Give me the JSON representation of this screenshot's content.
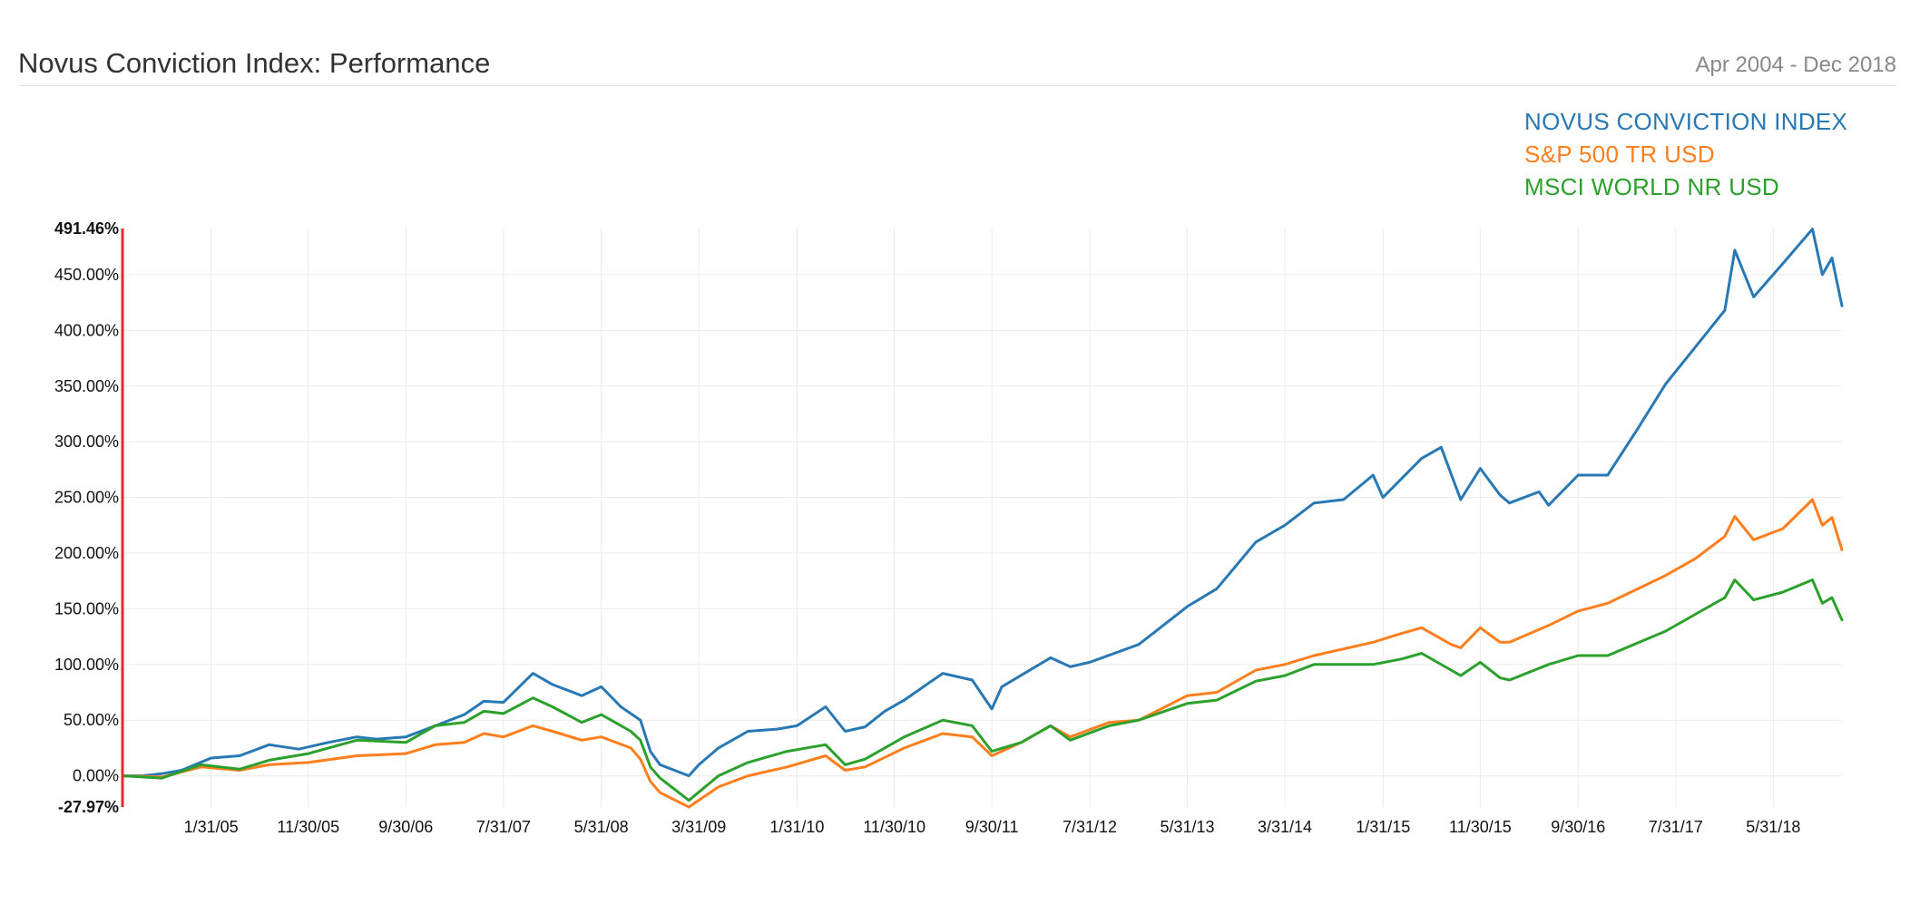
{
  "header": {
    "title": "Novus Conviction Index: Performance",
    "date_range": "Apr 2004 - Dec 2018"
  },
  "legend": [
    {
      "label": "NOVUS CONVICTION INDEX",
      "color": "#2878b4"
    },
    {
      "label": "S&P 500 TR USD",
      "color": "#ff7f1e"
    },
    {
      "label": "MSCI WORLD NR USD",
      "color": "#2ca02c"
    }
  ],
  "chart_data": {
    "type": "line",
    "title": "Novus Conviction Index: Performance",
    "xlabel": "",
    "ylabel": "",
    "ylim": [
      -27.97,
      491.46
    ],
    "y_ticks": [
      "491.46%",
      "450.00%",
      "400.00%",
      "350.00%",
      "300.00%",
      "250.00%",
      "200.00%",
      "150.00%",
      "100.00%",
      "50.00%",
      "0.00%",
      "-27.97%"
    ],
    "y_tick_values": [
      491.46,
      450,
      400,
      350,
      300,
      250,
      200,
      150,
      100,
      50,
      0,
      -27.97
    ],
    "x_ticks": [
      "1/31/05",
      "11/30/05",
      "9/30/06",
      "7/31/07",
      "5/31/08",
      "3/31/09",
      "1/31/10",
      "11/30/10",
      "9/30/11",
      "7/31/12",
      "5/31/13",
      "3/31/14",
      "1/31/15",
      "11/30/15",
      "9/30/16",
      "7/31/17",
      "5/31/18"
    ],
    "x_start": "2004-04-30",
    "x_end": "2018-12-31",
    "grid": true,
    "legend_position": "top-right",
    "series": [
      {
        "name": "NOVUS CONVICTION INDEX",
        "color": "#2878b4",
        "points": [
          [
            "2004-04-30",
            0
          ],
          [
            "2004-06-30",
            0
          ],
          [
            "2004-08-31",
            2
          ],
          [
            "2004-10-31",
            5
          ],
          [
            "2005-01-31",
            16
          ],
          [
            "2005-04-30",
            18
          ],
          [
            "2005-07-31",
            28
          ],
          [
            "2005-10-31",
            24
          ],
          [
            "2006-01-31",
            30
          ],
          [
            "2006-04-30",
            35
          ],
          [
            "2006-06-30",
            33
          ],
          [
            "2006-09-30",
            35
          ],
          [
            "2006-12-31",
            45
          ],
          [
            "2007-03-31",
            55
          ],
          [
            "2007-05-31",
            67
          ],
          [
            "2007-07-31",
            66
          ],
          [
            "2007-10-31",
            92
          ],
          [
            "2007-12-31",
            82
          ],
          [
            "2008-03-31",
            72
          ],
          [
            "2008-05-31",
            80
          ],
          [
            "2008-07-31",
            62
          ],
          [
            "2008-09-30",
            50
          ],
          [
            "2008-10-31",
            22
          ],
          [
            "2008-11-30",
            10
          ],
          [
            "2009-02-28",
            0
          ],
          [
            "2009-03-31",
            10
          ],
          [
            "2009-05-31",
            25
          ],
          [
            "2009-08-31",
            40
          ],
          [
            "2009-11-30",
            42
          ],
          [
            "2010-01-31",
            45
          ],
          [
            "2010-04-30",
            62
          ],
          [
            "2010-06-30",
            40
          ],
          [
            "2010-08-31",
            44
          ],
          [
            "2010-10-31",
            58
          ],
          [
            "2010-12-31",
            68
          ],
          [
            "2011-04-30",
            92
          ],
          [
            "2011-07-31",
            86
          ],
          [
            "2011-09-30",
            60
          ],
          [
            "2011-10-31",
            80
          ],
          [
            "2012-03-31",
            106
          ],
          [
            "2012-05-31",
            98
          ],
          [
            "2012-07-31",
            102
          ],
          [
            "2012-12-31",
            118
          ],
          [
            "2013-05-31",
            152
          ],
          [
            "2013-08-31",
            168
          ],
          [
            "2013-12-31",
            210
          ],
          [
            "2014-03-31",
            225
          ],
          [
            "2014-06-30",
            245
          ],
          [
            "2014-09-30",
            248
          ],
          [
            "2014-12-31",
            270
          ],
          [
            "2015-01-31",
            250
          ],
          [
            "2015-05-31",
            285
          ],
          [
            "2015-07-31",
            295
          ],
          [
            "2015-09-30",
            248
          ],
          [
            "2015-11-30",
            276
          ],
          [
            "2016-01-31",
            252
          ],
          [
            "2016-02-29",
            245
          ],
          [
            "2016-05-31",
            255
          ],
          [
            "2016-06-30",
            243
          ],
          [
            "2016-09-30",
            270
          ],
          [
            "2016-12-31",
            270
          ],
          [
            "2017-03-31",
            310
          ],
          [
            "2017-06-30",
            352
          ],
          [
            "2017-09-30",
            385
          ],
          [
            "2017-12-31",
            418
          ],
          [
            "2018-01-31",
            472
          ],
          [
            "2018-03-31",
            430
          ],
          [
            "2018-06-30",
            460
          ],
          [
            "2018-09-30",
            491
          ],
          [
            "2018-10-31",
            450
          ],
          [
            "2018-11-30",
            465
          ],
          [
            "2018-12-31",
            422
          ]
        ]
      },
      {
        "name": "S&P 500 TR USD",
        "color": "#ff7f1e",
        "points": [
          [
            "2004-04-30",
            0
          ],
          [
            "2004-08-31",
            -1
          ],
          [
            "2004-12-31",
            8
          ],
          [
            "2005-04-30",
            5
          ],
          [
            "2005-07-31",
            10
          ],
          [
            "2005-11-30",
            12
          ],
          [
            "2006-04-30",
            18
          ],
          [
            "2006-09-30",
            20
          ],
          [
            "2006-12-31",
            28
          ],
          [
            "2007-03-31",
            30
          ],
          [
            "2007-05-31",
            38
          ],
          [
            "2007-07-31",
            35
          ],
          [
            "2007-10-31",
            45
          ],
          [
            "2007-12-31",
            40
          ],
          [
            "2008-03-31",
            32
          ],
          [
            "2008-05-31",
            35
          ],
          [
            "2008-08-31",
            25
          ],
          [
            "2008-09-30",
            15
          ],
          [
            "2008-10-31",
            -5
          ],
          [
            "2008-11-30",
            -15
          ],
          [
            "2009-02-28",
            -28
          ],
          [
            "2009-05-31",
            -10
          ],
          [
            "2009-08-31",
            0
          ],
          [
            "2009-12-31",
            8
          ],
          [
            "2010-04-30",
            18
          ],
          [
            "2010-06-30",
            5
          ],
          [
            "2010-08-31",
            8
          ],
          [
            "2010-12-31",
            25
          ],
          [
            "2011-04-30",
            38
          ],
          [
            "2011-07-31",
            35
          ],
          [
            "2011-09-30",
            18
          ],
          [
            "2011-12-31",
            30
          ],
          [
            "2012-03-31",
            45
          ],
          [
            "2012-05-31",
            35
          ],
          [
            "2012-09-30",
            48
          ],
          [
            "2012-12-31",
            50
          ],
          [
            "2013-05-31",
            72
          ],
          [
            "2013-08-31",
            75
          ],
          [
            "2013-12-31",
            95
          ],
          [
            "2014-03-31",
            100
          ],
          [
            "2014-06-30",
            108
          ],
          [
            "2014-12-31",
            120
          ],
          [
            "2015-03-31",
            128
          ],
          [
            "2015-05-31",
            133
          ],
          [
            "2015-08-31",
            118
          ],
          [
            "2015-09-30",
            115
          ],
          [
            "2015-11-30",
            133
          ],
          [
            "2016-01-31",
            120
          ],
          [
            "2016-02-29",
            120
          ],
          [
            "2016-06-30",
            135
          ],
          [
            "2016-09-30",
            148
          ],
          [
            "2016-12-31",
            155
          ],
          [
            "2017-06-30",
            180
          ],
          [
            "2017-09-30",
            195
          ],
          [
            "2017-12-31",
            215
          ],
          [
            "2018-01-31",
            233
          ],
          [
            "2018-03-31",
            212
          ],
          [
            "2018-06-30",
            222
          ],
          [
            "2018-09-30",
            248
          ],
          [
            "2018-10-31",
            225
          ],
          [
            "2018-11-30",
            232
          ],
          [
            "2018-12-31",
            203
          ]
        ]
      },
      {
        "name": "MSCI WORLD NR USD",
        "color": "#2ca02c",
        "points": [
          [
            "2004-04-30",
            0
          ],
          [
            "2004-08-31",
            -2
          ],
          [
            "2004-12-31",
            10
          ],
          [
            "2005-04-30",
            6
          ],
          [
            "2005-07-31",
            14
          ],
          [
            "2005-11-30",
            20
          ],
          [
            "2006-04-30",
            32
          ],
          [
            "2006-09-30",
            30
          ],
          [
            "2006-12-31",
            45
          ],
          [
            "2007-03-31",
            48
          ],
          [
            "2007-05-31",
            58
          ],
          [
            "2007-07-31",
            56
          ],
          [
            "2007-10-31",
            70
          ],
          [
            "2007-12-31",
            62
          ],
          [
            "2008-03-31",
            48
          ],
          [
            "2008-05-31",
            55
          ],
          [
            "2008-08-31",
            40
          ],
          [
            "2008-09-30",
            32
          ],
          [
            "2008-10-31",
            8
          ],
          [
            "2008-11-30",
            -2
          ],
          [
            "2009-02-28",
            -22
          ],
          [
            "2009-05-31",
            0
          ],
          [
            "2009-08-31",
            12
          ],
          [
            "2009-12-31",
            22
          ],
          [
            "2010-04-30",
            28
          ],
          [
            "2010-06-30",
            10
          ],
          [
            "2010-08-31",
            15
          ],
          [
            "2010-12-31",
            35
          ],
          [
            "2011-04-30",
            50
          ],
          [
            "2011-07-31",
            45
          ],
          [
            "2011-09-30",
            22
          ],
          [
            "2011-12-31",
            30
          ],
          [
            "2012-03-31",
            45
          ],
          [
            "2012-05-31",
            32
          ],
          [
            "2012-09-30",
            45
          ],
          [
            "2012-12-31",
            50
          ],
          [
            "2013-05-31",
            65
          ],
          [
            "2013-08-31",
            68
          ],
          [
            "2013-12-31",
            85
          ],
          [
            "2014-03-31",
            90
          ],
          [
            "2014-06-30",
            100
          ],
          [
            "2014-12-31",
            100
          ],
          [
            "2015-03-31",
            105
          ],
          [
            "2015-05-31",
            110
          ],
          [
            "2015-08-31",
            95
          ],
          [
            "2015-09-30",
            90
          ],
          [
            "2015-11-30",
            102
          ],
          [
            "2016-01-31",
            88
          ],
          [
            "2016-02-29",
            86
          ],
          [
            "2016-06-30",
            100
          ],
          [
            "2016-09-30",
            108
          ],
          [
            "2016-12-31",
            108
          ],
          [
            "2017-06-30",
            130
          ],
          [
            "2017-09-30",
            145
          ],
          [
            "2017-12-31",
            160
          ],
          [
            "2018-01-31",
            176
          ],
          [
            "2018-03-31",
            158
          ],
          [
            "2018-06-30",
            165
          ],
          [
            "2018-09-30",
            176
          ],
          [
            "2018-10-31",
            155
          ],
          [
            "2018-11-30",
            160
          ],
          [
            "2018-12-31",
            140
          ]
        ]
      }
    ]
  }
}
